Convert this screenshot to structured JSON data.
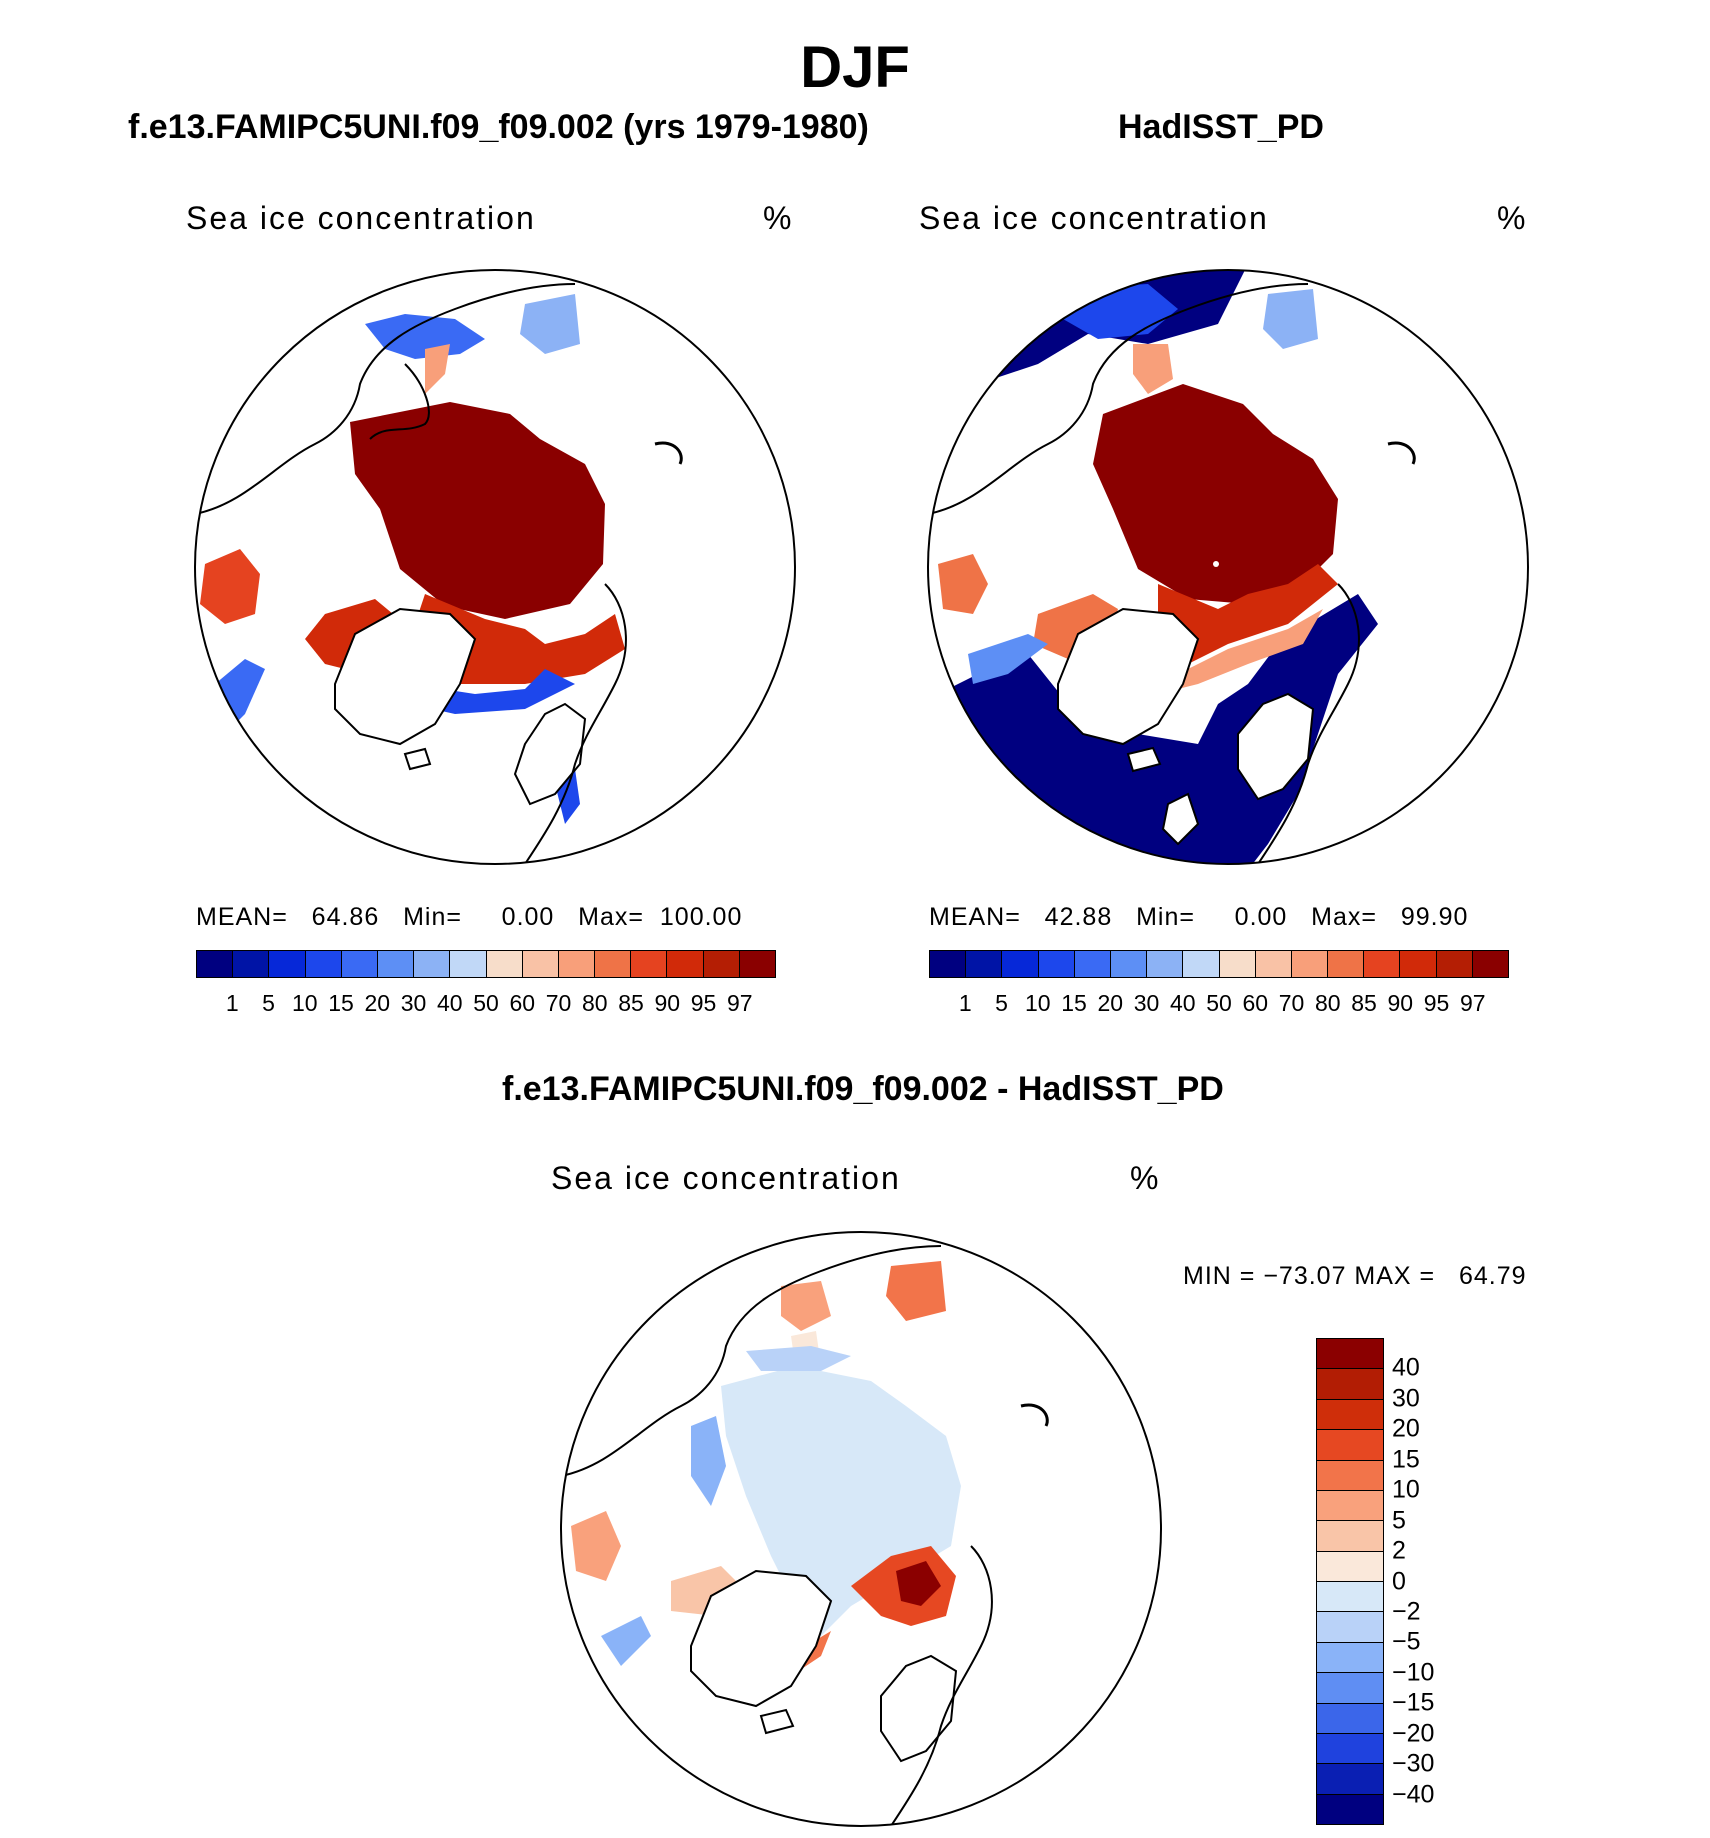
{
  "title": "DJF",
  "colors": {
    "abs_scale": [
      "#000080",
      "#0014a6",
      "#0628d8",
      "#1d47ec",
      "#3a6af4",
      "#5d8ff5",
      "#8cb2f5",
      "#c1d8f7",
      "#f7ddca",
      "#f9c2a6",
      "#f89f7a",
      "#ef7347",
      "#e54320",
      "#d12a09",
      "#b41e04",
      "#8a0000"
    ],
    "diff_scale": [
      "#000080",
      "#0a1fb3",
      "#1f42de",
      "#3b66ea",
      "#5f8ef3",
      "#8ab3f8",
      "#b9d2f8",
      "#d7e8f8",
      "#fae8da",
      "#f9c5a8",
      "#f9a17c",
      "#f2744a",
      "#e64822",
      "#cf2e0a",
      "#b21d04",
      "#8b0000"
    ],
    "land_line": "#000000"
  },
  "panels": [
    {
      "title": "f.e13.FAMIPC5UNI.f09_f09.002 (yrs 1979-1980)",
      "variable": "Sea ice concentration",
      "units": "%",
      "stats": "MEAN=   64.86   Min=     0.00   Max=  100.00",
      "levels": [
        "1",
        "5",
        "10",
        "15",
        "20",
        "30",
        "40",
        "50",
        "60",
        "70",
        "80",
        "85",
        "90",
        "95",
        "97"
      ]
    },
    {
      "title": "HadISST_PD",
      "variable": "Sea ice concentration",
      "units": "%",
      "stats": "MEAN=   42.88   Min=     0.00   Max=   99.90",
      "levels": [
        "1",
        "5",
        "10",
        "15",
        "20",
        "30",
        "40",
        "50",
        "60",
        "70",
        "80",
        "85",
        "90",
        "95",
        "97"
      ]
    },
    {
      "title": "f.e13.FAMIPC5UNI.f09_f09.002 - HadISST_PD",
      "variable": "Sea ice concentration",
      "units": "%",
      "stats": "MIN = −73.07 MAX =   64.79",
      "levels": [
        "40",
        "30",
        "20",
        "15",
        "10",
        "5",
        "2",
        "0",
        "−2",
        "−5",
        "−10",
        "−15",
        "−20",
        "−30",
        "−40"
      ]
    }
  ]
}
